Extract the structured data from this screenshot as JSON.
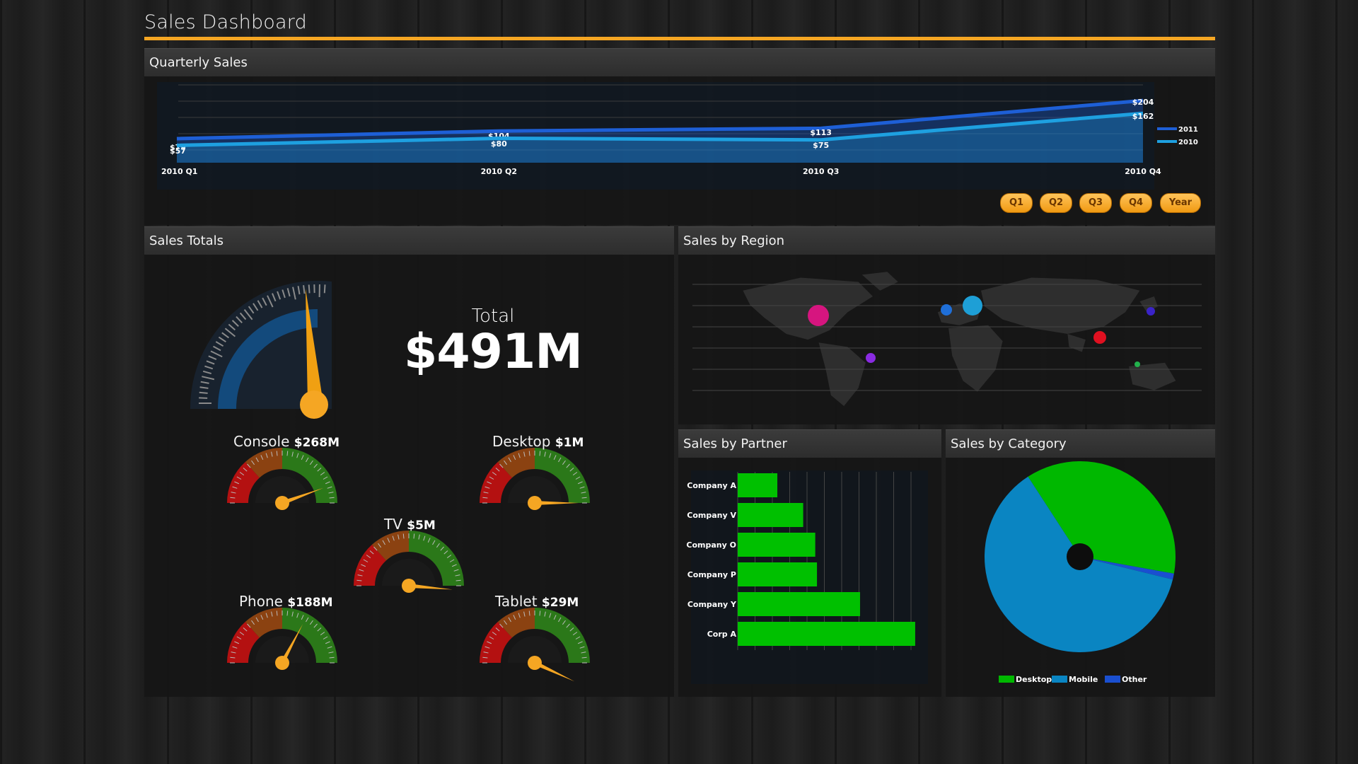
{
  "app": {
    "title": "Sales Dashboard",
    "accent": "#f5a623"
  },
  "quarterly": {
    "header": "Quarterly Sales",
    "buttons": [
      "Q1",
      "Q2",
      "Q3",
      "Q4",
      "Year"
    ]
  },
  "totals": {
    "header": "Sales Totals",
    "total_label": "Total",
    "total_value": "$491M",
    "gauges": [
      {
        "name": "Console",
        "value": "$268M"
      },
      {
        "name": "Desktop",
        "value": "$1M"
      },
      {
        "name": "TV",
        "value": "$5M"
      },
      {
        "name": "Phone",
        "value": "$188M"
      },
      {
        "name": "Tablet",
        "value": "$29M"
      }
    ]
  },
  "region": {
    "header": "Sales by Region",
    "bubble_colors": [
      "#d6157f",
      "#1f6fd8",
      "#1e9fd6",
      "#3a23c8",
      "#e01020",
      "#8a2be2",
      "#22b14c"
    ]
  },
  "partner": {
    "header": "Sales by Partner"
  },
  "category": {
    "header": "Sales by Category"
  },
  "chart_data": [
    {
      "type": "area",
      "categories": [
        "2010 Q1",
        "2010 Q2",
        "2010 Q3",
        "2010 Q4"
      ],
      "series": [
        {
          "name": "2011",
          "values": [
            79,
            104,
            113,
            204
          ],
          "labels": [
            "$79",
            "$104",
            "$113",
            "$204"
          ],
          "color": "#1e5fd6"
        },
        {
          "name": "2010",
          "values": [
            57,
            80,
            75,
            162
          ],
          "labels": [
            "$57",
            "$80",
            "$75",
            "$162"
          ],
          "color": "#1ea0e0"
        }
      ],
      "ylim": [
        0,
        260
      ],
      "grid": true,
      "legend": "right"
    },
    {
      "type": "bar",
      "orientation": "horizontal",
      "categories": [
        "Company A",
        "Company V",
        "Company O",
        "Company P",
        "Company Y",
        "Corp A"
      ],
      "values": [
        23,
        38,
        45,
        46,
        71,
        103
      ],
      "xlim": [
        0,
        110
      ],
      "color": "#00c000",
      "grid": true
    },
    {
      "type": "pie",
      "labels": [
        "Desktop",
        "Mobile",
        "Other"
      ],
      "values": [
        37,
        62,
        1
      ],
      "colors": [
        "#00b800",
        "#0a85c2",
        "#1a4fd0"
      ],
      "legend": "bottom"
    }
  ]
}
